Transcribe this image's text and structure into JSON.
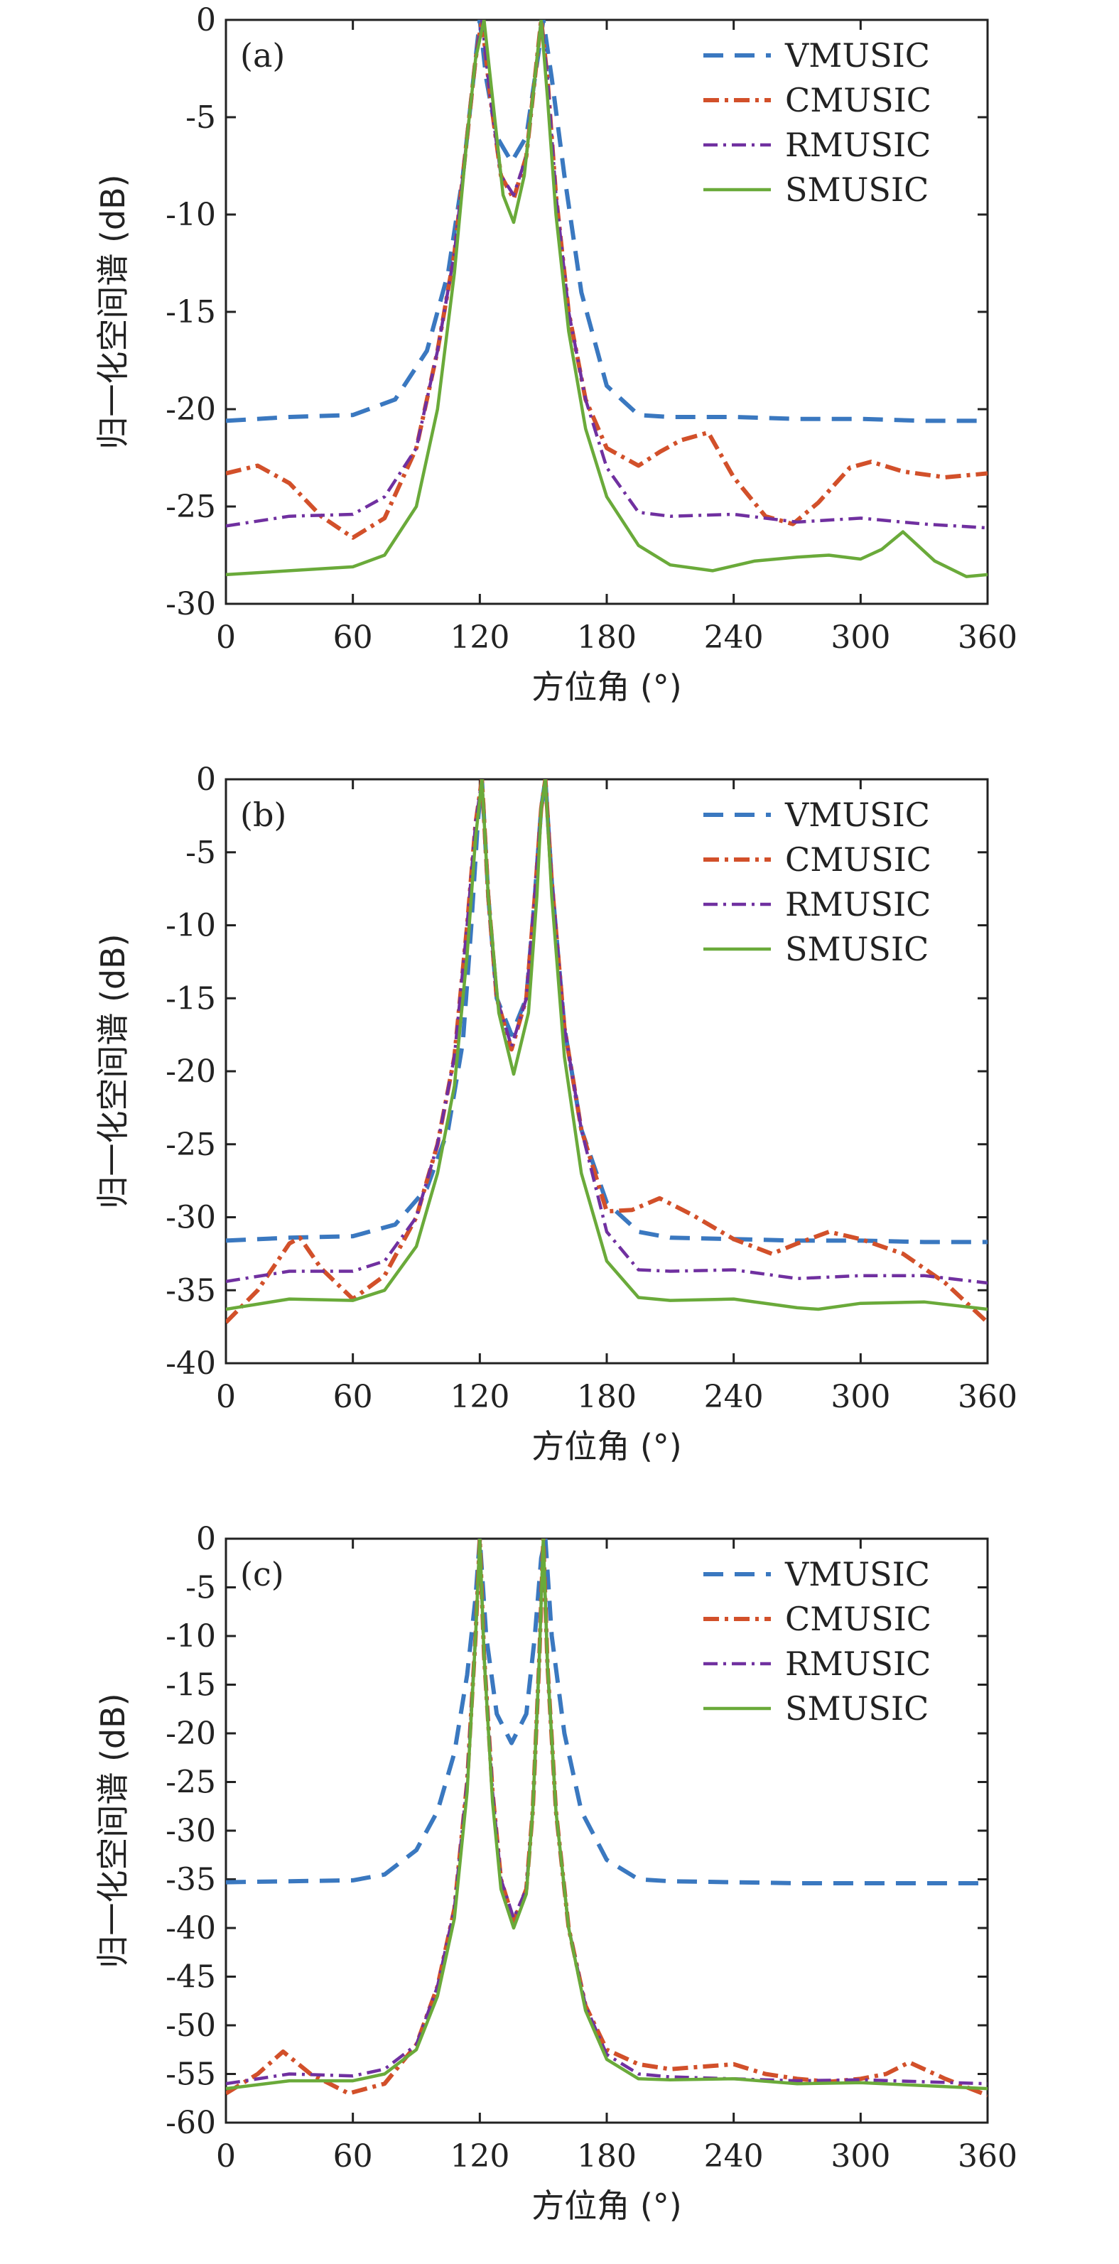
{
  "series_styles": [
    {
      "name": "VMUSIC",
      "color": "#3a78c0",
      "dash": "28 16",
      "width": 6
    },
    {
      "name": "CMUSIC",
      "color": "#d2502a",
      "dash": "22 8 5 8",
      "width": 6
    },
    {
      "name": "RMUSIC",
      "color": "#7030a0",
      "dash": "20 8 4 8",
      "width": 4.5
    },
    {
      "name": "SMUSIC",
      "color": "#6aaa3a",
      "dash": "",
      "width": 4.5
    }
  ],
  "chart_data": [
    {
      "type": "line",
      "panel": "(a)",
      "xlabel": "方位角 (°)",
      "ylabel": "归一化空间谱 (dB)",
      "xlim": [
        0,
        360
      ],
      "ylim": [
        -30,
        0
      ],
      "xticks": [
        "0",
        "60",
        "120",
        "180",
        "240",
        "300",
        "360"
      ],
      "yticks": [
        "0",
        "-5",
        "-10",
        "-15",
        "-20",
        "-25",
        "-30"
      ],
      "legend_position": "top-right",
      "series": [
        {
          "name": "VMUSIC",
          "x": [
            0,
            30,
            60,
            80,
            95,
            105,
            112,
            117,
            120,
            123,
            128,
            135,
            142,
            146,
            150,
            154,
            160,
            168,
            180,
            195,
            210,
            240,
            270,
            300,
            330,
            360
          ],
          "y": [
            -20.6,
            -20.4,
            -20.3,
            -19.5,
            -17,
            -13,
            -8,
            -3,
            0,
            -3,
            -6,
            -7.3,
            -6,
            -3,
            0,
            -3,
            -8,
            -14,
            -18.8,
            -20.3,
            -20.4,
            -20.4,
            -20.5,
            -20.5,
            -20.6,
            -20.6
          ]
        },
        {
          "name": "CMUSIC",
          "x": [
            0,
            15,
            30,
            45,
            60,
            75,
            90,
            100,
            108,
            114,
            118,
            121,
            125,
            130,
            136,
            142,
            146,
            149,
            152,
            156,
            162,
            170,
            180,
            195,
            205,
            215,
            228,
            240,
            255,
            268,
            280,
            295,
            305,
            320,
            340,
            360
          ],
          "y": [
            -23.3,
            -22.9,
            -23.8,
            -25.5,
            -26.6,
            -25.6,
            -22,
            -17,
            -12,
            -6,
            -2,
            0,
            -4,
            -8,
            -9.2,
            -7,
            -3,
            0,
            -3,
            -9,
            -15,
            -19.5,
            -22,
            -22.9,
            -22.2,
            -21.6,
            -21.2,
            -23.5,
            -25.5,
            -25.9,
            -24.8,
            -23,
            -22.7,
            -23.2,
            -23.5,
            -23.3
          ]
        },
        {
          "name": "RMUSIC",
          "x": [
            0,
            30,
            60,
            75,
            90,
            100,
            108,
            114,
            118,
            121,
            125,
            130,
            136,
            142,
            146,
            149,
            152,
            156,
            162,
            170,
            180,
            195,
            210,
            240,
            270,
            300,
            330,
            360
          ],
          "y": [
            -26,
            -25.5,
            -25.4,
            -24.5,
            -22,
            -17,
            -12,
            -6,
            -2,
            0,
            -4,
            -8,
            -9,
            -7,
            -3,
            0,
            -3,
            -9,
            -15,
            -19.5,
            -23,
            -25.3,
            -25.5,
            -25.4,
            -25.8,
            -25.6,
            -25.9,
            -26.1
          ]
        },
        {
          "name": "SMUSIC",
          "x": [
            0,
            30,
            60,
            75,
            90,
            100,
            108,
            114,
            118,
            122,
            126,
            131,
            136,
            141,
            145,
            149,
            152,
            156,
            162,
            170,
            180,
            195,
            210,
            230,
            250,
            270,
            285,
            300,
            310,
            320,
            335,
            350,
            360
          ],
          "y": [
            -28.5,
            -28.3,
            -28.1,
            -27.5,
            -25,
            -20,
            -13,
            -6,
            -2,
            0,
            -4,
            -9,
            -10.4,
            -8,
            -4,
            0,
            -4,
            -10,
            -16,
            -21,
            -24.5,
            -27,
            -28,
            -28.3,
            -27.8,
            -27.6,
            -27.5,
            -27.7,
            -27.2,
            -26.3,
            -27.8,
            -28.6,
            -28.5
          ]
        }
      ]
    },
    {
      "type": "line",
      "panel": "(b)",
      "xlabel": "方位角 (°)",
      "ylabel": "归一化空间谱 (dB)",
      "xlim": [
        0,
        360
      ],
      "ylim": [
        -40,
        0
      ],
      "xticks": [
        "0",
        "60",
        "120",
        "180",
        "240",
        "300",
        "360"
      ],
      "yticks": [
        "0",
        "-5",
        "-10",
        "-15",
        "-20",
        "-25",
        "-30",
        "-35",
        "-40"
      ],
      "legend_position": "top-right",
      "series": [
        {
          "name": "VMUSIC",
          "x": [
            0,
            30,
            60,
            80,
            95,
            105,
            112,
            116,
            119,
            121,
            124,
            128,
            135,
            142,
            146,
            149,
            151,
            154,
            160,
            168,
            180,
            195,
            210,
            240,
            270,
            300,
            330,
            360
          ],
          "y": [
            -31.6,
            -31.4,
            -31.3,
            -30.5,
            -28,
            -24,
            -18,
            -10,
            -3,
            0,
            -8,
            -15,
            -17.5,
            -15,
            -8,
            -2,
            0,
            -7,
            -17,
            -24,
            -29,
            -31,
            -31.4,
            -31.5,
            -31.6,
            -31.6,
            -31.7,
            -31.7
          ]
        },
        {
          "name": "CMUSIC",
          "x": [
            0,
            15,
            30,
            35,
            45,
            60,
            75,
            90,
            100,
            108,
            114,
            118,
            121,
            124,
            128,
            135,
            142,
            146,
            149,
            151,
            154,
            160,
            168,
            180,
            192,
            205,
            220,
            240,
            258,
            270,
            285,
            300,
            320,
            340,
            360
          ],
          "y": [
            -37.2,
            -35,
            -31.8,
            -31.4,
            -33.5,
            -35.6,
            -34,
            -30,
            -25,
            -19,
            -10,
            -3,
            0,
            -8,
            -15,
            -18.5,
            -15,
            -8,
            -2,
            0,
            -7,
            -17,
            -24,
            -29.6,
            -29.5,
            -28.7,
            -29.8,
            -31.5,
            -32.5,
            -31.8,
            -31,
            -31.5,
            -32.5,
            -34.5,
            -37.2
          ]
        },
        {
          "name": "RMUSIC",
          "x": [
            0,
            30,
            60,
            75,
            90,
            100,
            108,
            114,
            118,
            121,
            124,
            128,
            135,
            142,
            146,
            149,
            151,
            154,
            160,
            168,
            180,
            195,
            210,
            240,
            270,
            300,
            330,
            360
          ],
          "y": [
            -34.4,
            -33.7,
            -33.7,
            -33,
            -30,
            -25,
            -19,
            -10,
            -3,
            0,
            -8,
            -15,
            -18.3,
            -15,
            -8,
            -2,
            0,
            -7,
            -17,
            -24,
            -31,
            -33.6,
            -33.7,
            -33.6,
            -34.2,
            -34,
            -34,
            -34.5
          ]
        },
        {
          "name": "SMUSIC",
          "x": [
            0,
            30,
            60,
            75,
            90,
            100,
            108,
            114,
            118,
            121,
            124,
            129,
            136,
            143,
            147,
            149,
            151,
            154,
            160,
            168,
            180,
            195,
            210,
            240,
            270,
            280,
            300,
            330,
            360
          ],
          "y": [
            -36.3,
            -35.6,
            -35.7,
            -35,
            -32,
            -27,
            -21,
            -12,
            -4,
            0,
            -8,
            -16,
            -20.2,
            -16,
            -8,
            -2,
            0,
            -8,
            -19,
            -27,
            -33,
            -35.5,
            -35.7,
            -35.6,
            -36.2,
            -36.3,
            -35.9,
            -35.8,
            -36.3
          ]
        }
      ]
    },
    {
      "type": "line",
      "panel": "(c)",
      "xlabel": "方位角 (°)",
      "ylabel": "归一化空间谱 (dB)",
      "xlim": [
        0,
        360
      ],
      "ylim": [
        -60,
        0
      ],
      "xticks": [
        "0",
        "60",
        "120",
        "180",
        "240",
        "300",
        "360"
      ],
      "yticks": [
        "0",
        "-5",
        "-10",
        "-15",
        "-20",
        "-25",
        "-30",
        "-35",
        "-40",
        "-45",
        "-50",
        "-55",
        "-60"
      ],
      "legend_position": "top-right",
      "series": [
        {
          "name": "VMUSIC",
          "x": [
            0,
            30,
            60,
            75,
            90,
            100,
            108,
            114,
            118,
            120,
            123,
            128,
            135,
            142,
            146,
            149,
            151,
            154,
            160,
            168,
            180,
            195,
            210,
            240,
            270,
            300,
            330,
            360
          ],
          "y": [
            -35.3,
            -35.2,
            -35.1,
            -34.5,
            -32,
            -28,
            -22,
            -14,
            -6,
            0,
            -10,
            -18,
            -21,
            -18,
            -10,
            -2,
            0,
            -10,
            -20,
            -28,
            -33,
            -35,
            -35.2,
            -35.3,
            -35.4,
            -35.4,
            -35.4,
            -35.4
          ]
        },
        {
          "name": "CMUSIC",
          "x": [
            0,
            15,
            27,
            40,
            58,
            75,
            90,
            100,
            108,
            114,
            118,
            120,
            122,
            126,
            130,
            136,
            142,
            145,
            148,
            150,
            152,
            156,
            162,
            170,
            180,
            195,
            210,
            240,
            255,
            270,
            285,
            300,
            312,
            323,
            340,
            360
          ],
          "y": [
            -57,
            -55,
            -52.7,
            -55,
            -57,
            -56,
            -52,
            -46,
            -38,
            -25,
            -10,
            0,
            -12,
            -26,
            -35,
            -39.3,
            -36,
            -28,
            -13,
            0,
            -13,
            -28,
            -40,
            -48,
            -52.5,
            -54,
            -54.5,
            -54,
            -55,
            -55.5,
            -55.8,
            -55.5,
            -55,
            -53.8,
            -55.5,
            -57.2
          ]
        },
        {
          "name": "RMUSIC",
          "x": [
            0,
            30,
            60,
            75,
            90,
            100,
            108,
            114,
            118,
            120,
            122,
            126,
            130,
            136,
            142,
            145,
            148,
            150,
            152,
            156,
            162,
            170,
            180,
            195,
            210,
            240,
            270,
            300,
            330,
            360
          ],
          "y": [
            -56,
            -55,
            -55.2,
            -54.5,
            -52,
            -46,
            -38,
            -25,
            -10,
            0,
            -12,
            -26,
            -35,
            -39,
            -36,
            -28,
            -13,
            0,
            -13,
            -28,
            -40,
            -48,
            -53,
            -55,
            -55.3,
            -55.5,
            -55.7,
            -55.6,
            -55.8,
            -56
          ]
        },
        {
          "name": "SMUSIC",
          "x": [
            0,
            30,
            60,
            75,
            90,
            100,
            108,
            114,
            118,
            120,
            122,
            126,
            130,
            136,
            142,
            145,
            148,
            150,
            152,
            156,
            162,
            170,
            180,
            195,
            210,
            240,
            270,
            300,
            330,
            360
          ],
          "y": [
            -56.5,
            -55.7,
            -55.7,
            -55,
            -52.5,
            -47,
            -39,
            -26,
            -10,
            0,
            -12,
            -27,
            -36,
            -40,
            -36.5,
            -28,
            -13,
            0,
            -13,
            -28,
            -40,
            -48.5,
            -53.5,
            -55.5,
            -55.6,
            -55.5,
            -56,
            -55.9,
            -56.2,
            -56.5
          ]
        }
      ]
    }
  ]
}
